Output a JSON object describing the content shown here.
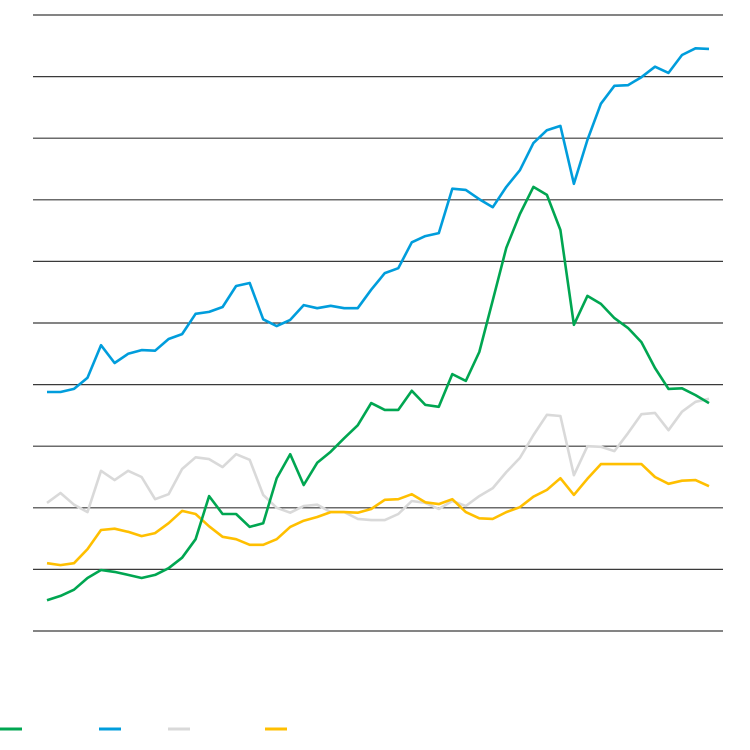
{
  "chart_data": {
    "type": "line",
    "title": "",
    "xlabel": "",
    "ylabel": "",
    "ylim": [
      0,
      10
    ],
    "xlim": [
      0,
      49
    ],
    "grid": "horizontal",
    "legend_placement": "bottom-left",
    "x": [
      0,
      1,
      2,
      3,
      4,
      5,
      6,
      7,
      8,
      9,
      10,
      11,
      12,
      13,
      14,
      15,
      16,
      17,
      18,
      19,
      20,
      21,
      22,
      23,
      24,
      25,
      26,
      27,
      28,
      29,
      30,
      31,
      32,
      33,
      34,
      35,
      36,
      37,
      38,
      39,
      40,
      41,
      42,
      43,
      44,
      45,
      46,
      47,
      48,
      49
    ],
    "series": [
      {
        "color": "#00a651",
        "values": [
          0.5,
          0.57,
          0.67,
          0.86,
          0.99,
          0.96,
          0.91,
          0.86,
          0.91,
          1.02,
          1.19,
          1.49,
          2.19,
          1.9,
          1.9,
          1.69,
          1.75,
          2.48,
          2.87,
          2.37,
          2.73,
          2.91,
          3.13,
          3.34,
          3.7,
          3.59,
          3.59,
          3.9,
          3.67,
          3.64,
          4.17,
          4.06,
          4.53,
          5.37,
          6.22,
          6.77,
          7.21,
          7.08,
          6.51,
          4.97,
          5.44,
          5.31,
          5.08,
          4.92,
          4.69,
          4.27,
          3.93,
          3.94,
          3.83,
          3.7
        ]
      },
      {
        "color": "#009ddc",
        "values": [
          3.88,
          3.88,
          3.93,
          4.11,
          4.64,
          4.35,
          4.5,
          4.56,
          4.55,
          4.74,
          4.82,
          5.15,
          5.18,
          5.26,
          5.6,
          5.65,
          5.06,
          4.95,
          5.05,
          5.29,
          5.24,
          5.28,
          5.24,
          5.24,
          5.54,
          5.81,
          5.89,
          6.31,
          6.41,
          6.46,
          7.18,
          7.16,
          7.01,
          6.88,
          7.21,
          7.48,
          7.92,
          8.13,
          8.2,
          7.26,
          7.97,
          8.56,
          8.85,
          8.86,
          8.99,
          9.16,
          9.06,
          9.35,
          9.46,
          9.45
        ]
      },
      {
        "color": "#d9d9d9",
        "values": [
          2.08,
          2.24,
          2.05,
          1.93,
          2.6,
          2.45,
          2.6,
          2.5,
          2.14,
          2.22,
          2.63,
          2.82,
          2.79,
          2.66,
          2.87,
          2.78,
          2.21,
          2.0,
          1.92,
          2.03,
          2.05,
          1.93,
          1.93,
          1.82,
          1.8,
          1.8,
          1.9,
          2.11,
          2.08,
          1.98,
          2.11,
          2.03,
          2.19,
          2.32,
          2.58,
          2.81,
          3.18,
          3.51,
          3.49,
          2.53,
          3.0,
          2.99,
          2.92,
          3.21,
          3.52,
          3.54,
          3.26,
          3.56,
          3.72,
          3.77
        ]
      },
      {
        "color": "#ffbf00",
        "values": [
          1.1,
          1.07,
          1.1,
          1.33,
          1.64,
          1.66,
          1.61,
          1.54,
          1.59,
          1.75,
          1.95,
          1.9,
          1.7,
          1.53,
          1.49,
          1.4,
          1.4,
          1.49,
          1.69,
          1.79,
          1.85,
          1.93,
          1.93,
          1.92,
          1.98,
          2.13,
          2.14,
          2.22,
          2.09,
          2.06,
          2.14,
          1.93,
          1.83,
          1.82,
          1.93,
          2.01,
          2.18,
          2.29,
          2.48,
          2.21,
          2.47,
          2.71,
          2.71,
          2.71,
          2.71,
          2.5,
          2.39,
          2.44,
          2.45,
          2.35
        ]
      }
    ]
  }
}
